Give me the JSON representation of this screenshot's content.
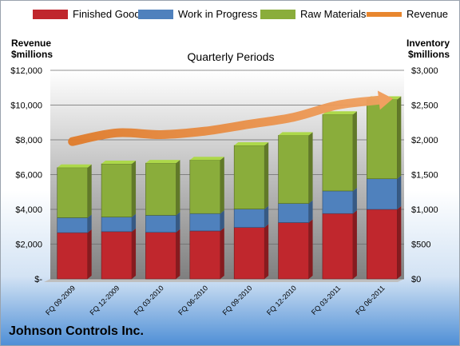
{
  "chart_data": {
    "type": "bar",
    "stacked": true,
    "title": "Quarterly Periods",
    "categories": [
      "FQ 09-2009",
      "FQ 12-2009",
      "FQ 03-2010",
      "FQ 06-2010",
      "FQ 09-2010",
      "FQ 12-2010",
      "FQ 03-2011",
      "FQ 06-2011"
    ],
    "series": [
      {
        "name": "Finished Goods",
        "axis": "right",
        "color": "#c0272d",
        "values": [
          665,
          680,
          670,
          690,
          740,
          810,
          940,
          1000
        ]
      },
      {
        "name": "Work in Progress",
        "axis": "right",
        "color": "#4f81bd",
        "values": [
          215,
          210,
          245,
          250,
          265,
          275,
          325,
          440
        ]
      },
      {
        "name": "Raw Materials",
        "axis": "right",
        "color": "#8aad3b",
        "values": [
          720,
          765,
          750,
          770,
          915,
          980,
          1100,
          1140
        ]
      },
      {
        "name": "Revenue",
        "type": "line",
        "axis": "left",
        "color": "#e8862e",
        "values": [
          7900,
          8400,
          8300,
          8500,
          8900,
          9300,
          10000,
          10300
        ]
      }
    ],
    "ylabel_left": "Revenue\n$millions",
    "ylabel_right": "Inventory\n$millions",
    "ylim_left": [
      0,
      12000
    ],
    "ylim_right": [
      0,
      3000
    ],
    "yticks_left": [
      "$-",
      "$2,000",
      "$4,000",
      "$6,000",
      "$8,000",
      "$10,000",
      "$12,000"
    ],
    "yticks_right": [
      "$0",
      "$500",
      "$1,000",
      "$1,500",
      "$2,000",
      "$2,500",
      "$3,000"
    ],
    "legend": "top",
    "grid": true
  },
  "labels": {
    "ylabel_left_line1": "Revenue",
    "ylabel_left_line2": "$millions",
    "ylabel_right_line1": "Inventory",
    "ylabel_right_line2": "$millions",
    "company": "Johnson Controls Inc."
  }
}
